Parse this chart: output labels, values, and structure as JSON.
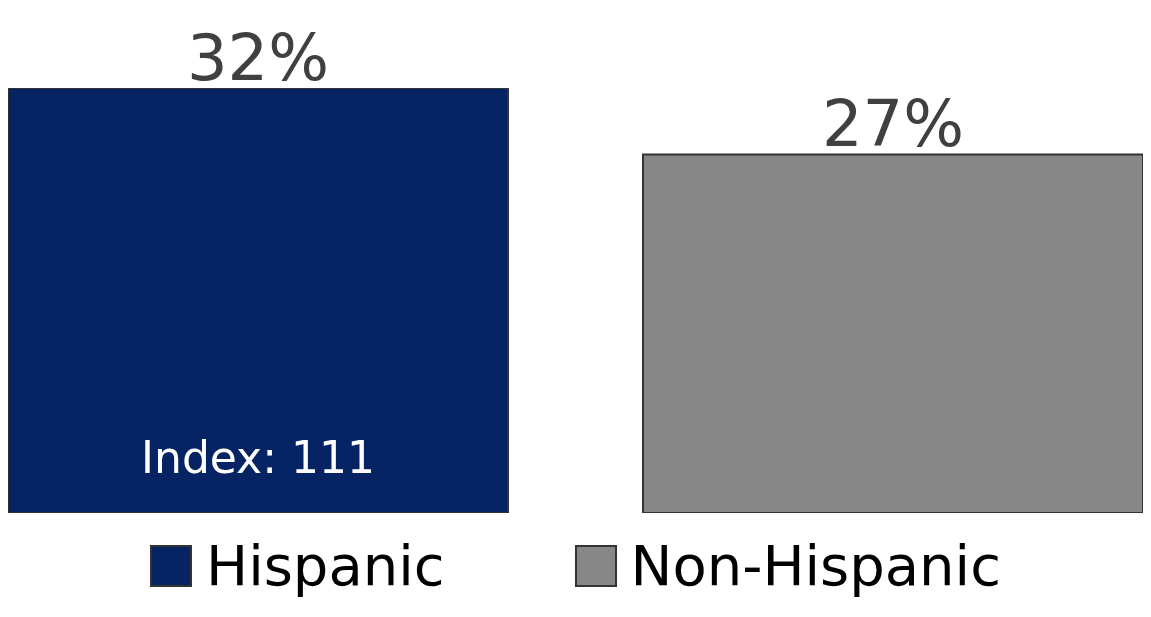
{
  "chart_data": {
    "type": "bar",
    "categories": [
      null
    ],
    "series": [
      {
        "name": "Hispanic",
        "color": "#062463",
        "values": [
          32
        ],
        "value_labels": [
          "32%"
        ]
      },
      {
        "name": "Non-Hispanic",
        "color": "#878787",
        "values": [
          27
        ],
        "value_labels": [
          "27%"
        ]
      }
    ],
    "annotations": [
      "Index: 111"
    ],
    "legend": "bottom",
    "grid": false
  }
}
